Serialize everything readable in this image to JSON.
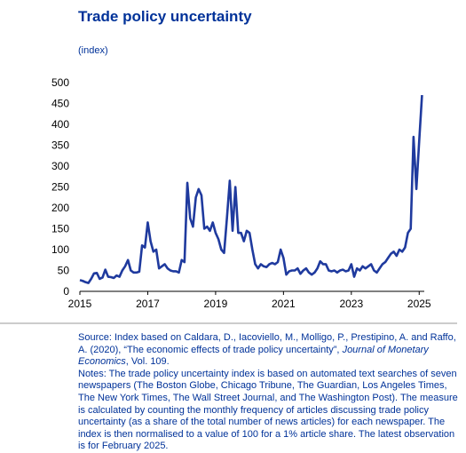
{
  "chart_data": {
    "type": "line",
    "title": "Trade policy uncertainty",
    "y_label": "(index)",
    "series": [
      {
        "name": "Trade policy uncertainty index",
        "color": "#1f3a9e",
        "x": [
          2015.0,
          2015.083,
          2015.167,
          2015.25,
          2015.333,
          2015.417,
          2015.5,
          2015.583,
          2015.667,
          2015.75,
          2015.833,
          2015.917,
          2016.0,
          2016.083,
          2016.167,
          2016.25,
          2016.333,
          2016.417,
          2016.5,
          2016.583,
          2016.667,
          2016.75,
          2016.833,
          2016.917,
          2017.0,
          2017.083,
          2017.167,
          2017.25,
          2017.333,
          2017.417,
          2017.5,
          2017.583,
          2017.667,
          2017.75,
          2017.833,
          2017.917,
          2018.0,
          2018.083,
          2018.167,
          2018.25,
          2018.333,
          2018.417,
          2018.5,
          2018.583,
          2018.667,
          2018.75,
          2018.833,
          2018.917,
          2019.0,
          2019.083,
          2019.167,
          2019.25,
          2019.333,
          2019.417,
          2019.5,
          2019.583,
          2019.667,
          2019.75,
          2019.833,
          2019.917,
          2020.0,
          2020.083,
          2020.167,
          2020.25,
          2020.333,
          2020.417,
          2020.5,
          2020.583,
          2020.667,
          2020.75,
          2020.833,
          2020.917,
          2021.0,
          2021.083,
          2021.167,
          2021.25,
          2021.333,
          2021.417,
          2021.5,
          2021.583,
          2021.667,
          2021.75,
          2021.833,
          2021.917,
          2022.0,
          2022.083,
          2022.167,
          2022.25,
          2022.333,
          2022.417,
          2022.5,
          2022.583,
          2022.667,
          2022.75,
          2022.833,
          2022.917,
          2023.0,
          2023.083,
          2023.167,
          2023.25,
          2023.333,
          2023.417,
          2023.5,
          2023.583,
          2023.667,
          2023.75,
          2023.833,
          2023.917,
          2024.0,
          2024.083,
          2024.167,
          2024.25,
          2024.333,
          2024.417,
          2024.5,
          2024.583,
          2024.667,
          2024.75,
          2024.833,
          2024.917,
          2025.0,
          2025.083
        ],
        "values": [
          27,
          25,
          22,
          20,
          30,
          43,
          44,
          30,
          33,
          52,
          35,
          34,
          32,
          38,
          35,
          50,
          60,
          75,
          50,
          45,
          45,
          47,
          110,
          105,
          165,
          120,
          95,
          100,
          55,
          60,
          65,
          55,
          50,
          48,
          48,
          45,
          75,
          70,
          260,
          175,
          155,
          225,
          245,
          230,
          150,
          155,
          145,
          165,
          140,
          125,
          100,
          92,
          175,
          265,
          145,
          250,
          140,
          140,
          120,
          145,
          140,
          100,
          65,
          55,
          65,
          60,
          58,
          65,
          68,
          65,
          70,
          100,
          80,
          40,
          48,
          50,
          50,
          55,
          42,
          50,
          55,
          45,
          40,
          45,
          55,
          72,
          65,
          65,
          50,
          48,
          50,
          45,
          50,
          52,
          48,
          50,
          65,
          35,
          55,
          50,
          60,
          55,
          60,
          65,
          50,
          45,
          55,
          65,
          70,
          80,
          90,
          95,
          85,
          100,
          95,
          105,
          140,
          150,
          370,
          245,
          360,
          470
        ]
      }
    ],
    "xlim": [
      2015,
      2025.15
    ],
    "xticks": [
      2015,
      2017,
      2019,
      2021,
      2023,
      2025
    ],
    "ylim": [
      0,
      500
    ],
    "yticks": [
      0,
      50,
      100,
      150,
      200,
      250,
      300,
      350,
      400,
      450,
      500
    ],
    "source": {
      "text": "Source: Index based on Caldara, D., Iacoviello, M., Molligo, P., Prestipino, A. and Raffo, A. (2020), “The economic effects of trade policy uncertainty”, ",
      "journal": "Journal of Monetary Economics",
      "end": ", Vol. 109."
    },
    "notes": "Notes: The trade policy uncertainty index is based on automated text searches of seven newspapers (The Boston Globe, Chicago Tribune, The Guardian, Los Angeles Times, The New York Times, The Wall Street Journal, and The Washington Post). The measure is calculated by counting the monthly frequency of articles discussing trade policy uncertainty (as a share of the total number of news articles) for each newspaper. The index is then normalised to a value of 100 for a 1% article share. The latest observation is for February 2025."
  }
}
